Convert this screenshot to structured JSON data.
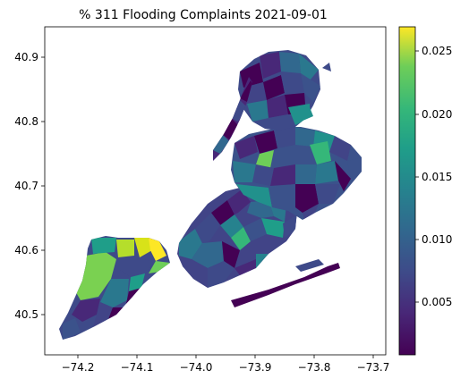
{
  "title": "% 311 Flooding Complaints 2021-09-01",
  "axes": {
    "x_ticks": [
      "−74.2",
      "−74.1",
      "−74.0",
      "−73.9",
      "−73.8",
      "−73.7"
    ],
    "y_ticks": [
      "40.5",
      "40.6",
      "40.7",
      "40.8",
      "40.9"
    ]
  },
  "colorbar": {
    "ticks": [
      "0.005",
      "0.010",
      "0.015",
      "0.020",
      "0.025"
    ],
    "range": [
      0.0003,
      0.0265
    ],
    "colormap": "viridis"
  },
  "colors": {
    "viridis_low": "#440154",
    "viridis_mid": "#21918c",
    "viridis_high": "#fde725"
  }
}
